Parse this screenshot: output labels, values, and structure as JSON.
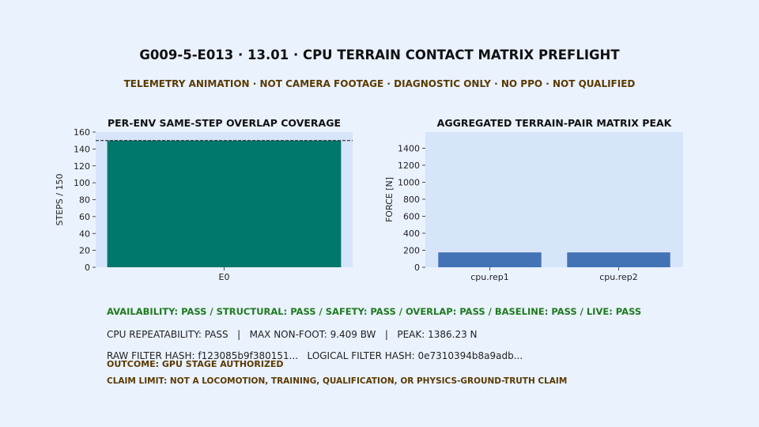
{
  "header": {
    "title": "G009-5-E013 · 13.01 · CPU TERRAIN CONTACT MATRIX PREFLIGHT",
    "subtitle": "TELEMETRY ANIMATION · NOT CAMERA FOOTAGE · DIAGNOSTIC ONLY · NO PPO · NOT QUALIFIED"
  },
  "colors": {
    "page_bg": "#eaf2fe",
    "plot_bg": "#d7e5fa",
    "coverage_bar": "#00786c",
    "force_bar": "#4373b5",
    "status_pass": "#1f7a1f",
    "warning_text": "#5a3a00"
  },
  "chart_data": [
    {
      "type": "bar",
      "title": "PER-ENV SAME-STEP OVERLAP COVERAGE",
      "xlabel": "",
      "ylabel": "STEPS / 150",
      "categories": [
        "E0"
      ],
      "values": [
        150
      ],
      "ylim": [
        0,
        160
      ],
      "yticks": [
        0,
        20,
        40,
        60,
        80,
        100,
        120,
        140,
        160
      ],
      "reference_line": 150,
      "grid": false
    },
    {
      "type": "bar",
      "title": "AGGREGATED TERRAIN-PAIR MATRIX PEAK",
      "xlabel": "",
      "ylabel": "FORCE [N]",
      "categories": [
        "cpu.rep1",
        "cpu.rep2"
      ],
      "values": [
        175,
        175
      ],
      "ylim": [
        0,
        1590
      ],
      "yticks": [
        0,
        200,
        400,
        600,
        800,
        1000,
        1200,
        1400
      ],
      "grid": false
    }
  ],
  "footer": {
    "status_line": "AVAILABILITY: PASS / STRUCTURAL: PASS / SAFETY: PASS / OVERLAP: PASS / BASELINE: PASS / LIVE: PASS",
    "metrics_line": "CPU REPEATABILITY: PASS   |   MAX NON-FOOT: 9.409 BW   |   PEAK: 1386.23 N",
    "hash_line": "RAW FILTER HASH: f123085b9f380151...   LOGICAL FILTER HASH: 0e7310394b8a9adb...",
    "outcome_line": "OUTCOME: GPU STAGE AUTHORIZED",
    "claim_line": "CLAIM LIMIT: NOT A LOCOMOTION, TRAINING, QUALIFICATION, OR PHYSICS-GROUND-TRUTH CLAIM"
  }
}
